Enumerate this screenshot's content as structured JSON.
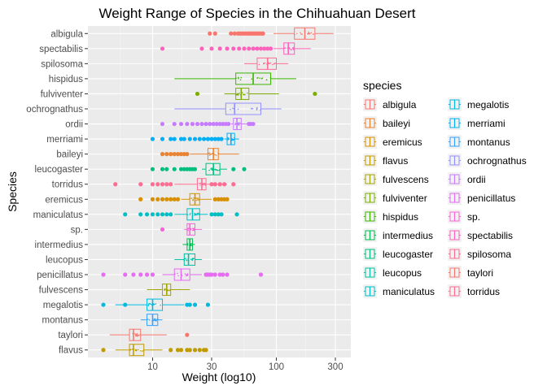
{
  "chart_data": {
    "type": "boxplot",
    "title": "Weight Range of Species in the Chihuahuan Desert",
    "xlabel": "Weight (log10)",
    "ylabel": "Species",
    "x_scale": "log10",
    "xlim": [
      3,
      400
    ],
    "x_ticks": [
      10,
      30,
      100,
      300
    ],
    "x_tick_labels": [
      "10",
      "30",
      "100",
      "300"
    ],
    "grid": true,
    "legend_position": "right",
    "legend_title": "species",
    "legend": [
      "albigula",
      "baileyi",
      "eremicus",
      "flavus",
      "fulvescens",
      "fulviventer",
      "hispidus",
      "intermedius",
      "leucogaster",
      "leucopus",
      "maniculatus",
      "megalotis",
      "merriami",
      "montanus",
      "ochrognathus",
      "ordii",
      "penicillatus",
      "sp.",
      "spectabilis",
      "spilosoma",
      "taylori",
      "torridus"
    ],
    "colors": {
      "albigula": "#F8766D",
      "baileyi": "#EA8331",
      "eremicus": "#D89000",
      "flavus": "#C09B00",
      "fulvescens": "#A3A500",
      "fulviventer": "#7CAE00",
      "hispidus": "#39B600",
      "intermedius": "#00BB4E",
      "leucogaster": "#00BF7D",
      "leucopus": "#00C1A3",
      "maniculatus": "#00BFC4",
      "megalotis": "#00BAE0",
      "merriami": "#00B0F6",
      "montanus": "#35A2FF",
      "ochrognathus": "#9590FF",
      "ordii": "#C77CFF",
      "penicillatus": "#E76BF3",
      "sp.": "#FA62DB",
      "spectabilis": "#FF62BC",
      "spilosoma": "#FF6C91",
      "taylori": "#F8766D",
      "torridus": "#FF6C91"
    },
    "y_order": [
      "albigula",
      "spectabilis",
      "spilosoma",
      "hispidus",
      "fulviventer",
      "ochrognathus",
      "ordii",
      "merriami",
      "baileyi",
      "leucogaster",
      "torridus",
      "eremicus",
      "maniculatus",
      "sp.",
      "intermedius",
      "leucopus",
      "penicillatus",
      "fulvescens",
      "megalotis",
      "montanus",
      "taylori",
      "flavus"
    ],
    "series": [
      {
        "name": "albigula",
        "min": 95,
        "q1": 140,
        "median": 170,
        "q3": 205,
        "max": 290,
        "outliers": [
          29,
          32,
          43,
          46,
          49,
          51,
          53,
          55,
          57,
          59,
          61,
          63,
          65,
          67,
          69,
          71,
          73,
          76,
          78
        ]
      },
      {
        "name": "spectabilis",
        "min": 95,
        "q1": 115,
        "median": 125,
        "q3": 140,
        "max": 190,
        "outliers": [
          12,
          25,
          30,
          35,
          40,
          45,
          50,
          55,
          60,
          65,
          70,
          75,
          80,
          85,
          90
        ]
      },
      {
        "name": "spilosoma",
        "min": 55,
        "q1": 70,
        "median": 85,
        "q3": 100,
        "max": 125,
        "outliers": []
      },
      {
        "name": "hispidus",
        "min": 15,
        "q1": 47,
        "median": 65,
        "q3": 90,
        "max": 145,
        "outliers": []
      },
      {
        "name": "fulviventer",
        "min": 38,
        "q1": 47,
        "median": 52,
        "q3": 60,
        "max": 105,
        "outliers": [
          23,
          205
        ]
      },
      {
        "name": "ochrognathus",
        "min": 15,
        "q1": 39,
        "median": 46,
        "q3": 75,
        "max": 110,
        "outliers": []
      },
      {
        "name": "ordii",
        "min": 43,
        "q1": 45,
        "median": 48,
        "q3": 52,
        "max": 58,
        "outliers": [
          12,
          15,
          17,
          19,
          21,
          23,
          25,
          27,
          29,
          31,
          33,
          35,
          37,
          39,
          41,
          60,
          62,
          65
        ]
      },
      {
        "name": "merriami",
        "min": 38,
        "q1": 40,
        "median": 43,
        "q3": 46,
        "max": 50,
        "outliers": [
          10,
          12,
          14,
          15,
          17,
          18,
          20,
          22,
          24,
          26,
          28,
          30,
          32,
          34,
          36
        ]
      },
      {
        "name": "baileyi",
        "min": 20,
        "q1": 28,
        "median": 31,
        "q3": 34,
        "max": 50,
        "outliers": [
          12,
          13,
          14,
          15,
          16,
          17,
          18,
          19
        ]
      },
      {
        "name": "leucogaster",
        "min": 25,
        "q1": 27,
        "median": 31,
        "q3": 35,
        "max": 40,
        "outliers": [
          10,
          12,
          13,
          15,
          17,
          18,
          19,
          20,
          21,
          22,
          45,
          55
        ]
      },
      {
        "name": "torridus",
        "min": 15,
        "q1": 23,
        "median": 25,
        "q3": 27,
        "max": 40,
        "outliers": [
          5,
          8,
          10,
          11,
          12,
          13,
          14,
          30,
          32,
          35,
          38,
          45
        ]
      },
      {
        "name": "eremicus",
        "min": 17,
        "q1": 20,
        "median": 22,
        "q3": 24,
        "max": 30,
        "outliers": [
          8,
          10,
          11,
          12,
          13,
          14,
          15,
          16,
          32,
          34,
          36,
          38,
          40
        ]
      },
      {
        "name": "maniculatus",
        "min": 15,
        "q1": 19,
        "median": 21,
        "q3": 24,
        "max": 28,
        "outliers": [
          6,
          8,
          9,
          10,
          11,
          12,
          13,
          14,
          30,
          32,
          34,
          36,
          48
        ]
      },
      {
        "name": "sp.",
        "min": 18,
        "q1": 19,
        "median": 20,
        "q3": 22,
        "max": 25,
        "outliers": [
          12
        ]
      },
      {
        "name": "intermedius",
        "min": 17.5,
        "q1": 19,
        "median": 20,
        "q3": 21,
        "max": 22,
        "outliers": []
      },
      {
        "name": "leucopus",
        "min": 15,
        "q1": 18,
        "median": 19.5,
        "q3": 22,
        "max": 25,
        "outliers": []
      },
      {
        "name": "penicillatus",
        "min": 12,
        "q1": 15,
        "median": 17,
        "q3": 20,
        "max": 25,
        "outliers": [
          4,
          6,
          7,
          8,
          9,
          10,
          27,
          28,
          29,
          30,
          32,
          35,
          37,
          40,
          75
        ]
      },
      {
        "name": "fulvescens",
        "min": 9,
        "q1": 12,
        "median": 13,
        "q3": 14,
        "max": 20,
        "outliers": []
      },
      {
        "name": "megalotis",
        "min": 5,
        "q1": 9,
        "median": 10,
        "q3": 12,
        "max": 18,
        "outliers": [
          4,
          6,
          19,
          20,
          22,
          28
        ]
      },
      {
        "name": "montanus",
        "min": 8,
        "q1": 9,
        "median": 10,
        "q3": 11,
        "max": 12,
        "outliers": []
      },
      {
        "name": "taylori",
        "min": 4.5,
        "q1": 6.5,
        "median": 7,
        "q3": 8,
        "max": 13,
        "outliers": [
          19
        ]
      },
      {
        "name": "flavus",
        "min": 5,
        "q1": 6.5,
        "median": 7,
        "q3": 8.5,
        "max": 12,
        "outliers": [
          4,
          14,
          16,
          17,
          19,
          20,
          22,
          24,
          26,
          27
        ]
      }
    ]
  }
}
